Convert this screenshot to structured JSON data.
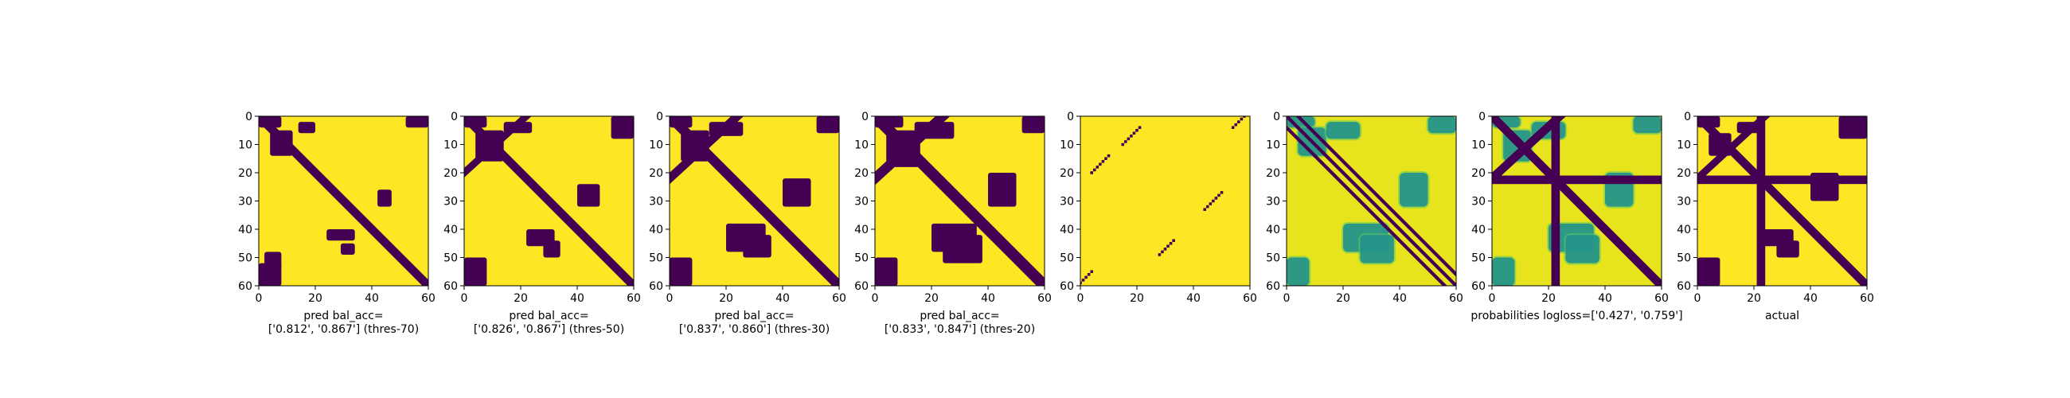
{
  "chart_data": [
    {
      "type": "heatmap",
      "panel": 1,
      "caption": [
        "pred bal_acc=",
        "['0.812', '0.867'] (thres-70)"
      ],
      "xticks": [
        0,
        20,
        40,
        60
      ],
      "yticks": [
        0,
        10,
        20,
        30,
        40,
        50,
        60
      ],
      "xlim": [
        0,
        60
      ],
      "ylim": [
        60,
        0
      ],
      "colormap": "binary",
      "colors": [
        "#440154",
        "#fde725"
      ],
      "dark_bands": [
        {
          "kind": "diagonal",
          "from": [
            0,
            0
          ],
          "to": [
            60,
            60
          ],
          "width": 3
        }
      ],
      "dark_blobs": [
        [
          0,
          0,
          8,
          4
        ],
        [
          4,
          5,
          12,
          14
        ],
        [
          14,
          2,
          20,
          6
        ],
        [
          52,
          0,
          60,
          4
        ],
        [
          42,
          26,
          47,
          32
        ],
        [
          24,
          40,
          34,
          44
        ],
        [
          2,
          48,
          8,
          54
        ],
        [
          0,
          52,
          8,
          60
        ],
        [
          29,
          45,
          34,
          49
        ]
      ]
    },
    {
      "type": "heatmap",
      "panel": 2,
      "caption": [
        "pred bal_acc=",
        "['0.826', '0.867'] (thres-50)"
      ],
      "xticks": [
        0,
        20,
        40,
        60
      ],
      "yticks": [
        0,
        10,
        20,
        30,
        40,
        50,
        60
      ],
      "xlim": [
        0,
        60
      ],
      "ylim": [
        60,
        0
      ],
      "colormap": "binary",
      "colors": [
        "#440154",
        "#fde725"
      ],
      "dark_bands": [
        {
          "kind": "diagonal",
          "from": [
            0,
            0
          ],
          "to": [
            60,
            60
          ],
          "width": 3
        },
        {
          "kind": "antidiagonal",
          "from": [
            22,
            0
          ],
          "to": [
            0,
            20
          ],
          "width": 2.5
        }
      ],
      "dark_blobs": [
        [
          0,
          0,
          8,
          4
        ],
        [
          4,
          5,
          14,
          16
        ],
        [
          14,
          2,
          24,
          6
        ],
        [
          52,
          0,
          60,
          8
        ],
        [
          40,
          24,
          48,
          32
        ],
        [
          22,
          40,
          32,
          46
        ],
        [
          0,
          50,
          8,
          60
        ],
        [
          28,
          44,
          34,
          50
        ]
      ]
    },
    {
      "type": "heatmap",
      "panel": 3,
      "caption": [
        "pred bal_acc=",
        "['0.837', '0.860'] (thres-30)"
      ],
      "xticks": [
        0,
        20,
        40,
        60
      ],
      "yticks": [
        0,
        10,
        20,
        30,
        40,
        50,
        60
      ],
      "xlim": [
        0,
        60
      ],
      "ylim": [
        60,
        0
      ],
      "colormap": "binary",
      "colors": [
        "#440154",
        "#fde725"
      ],
      "dark_bands": [
        {
          "kind": "diagonal",
          "from": [
            0,
            0
          ],
          "to": [
            60,
            60
          ],
          "width": 3.5
        },
        {
          "kind": "antidiagonal",
          "from": [
            24,
            0
          ],
          "to": [
            0,
            22
          ],
          "width": 3
        }
      ],
      "dark_blobs": [
        [
          0,
          0,
          8,
          4
        ],
        [
          4,
          5,
          14,
          16
        ],
        [
          14,
          2,
          26,
          7
        ],
        [
          52,
          0,
          60,
          6
        ],
        [
          40,
          22,
          50,
          32
        ],
        [
          20,
          38,
          34,
          48
        ],
        [
          0,
          50,
          8,
          60
        ],
        [
          26,
          42,
          36,
          50
        ]
      ]
    },
    {
      "type": "heatmap",
      "panel": 4,
      "caption": [
        "pred bal_acc=",
        "['0.833', '0.847'] (thres-20)"
      ],
      "xticks": [
        0,
        20,
        40,
        60
      ],
      "yticks": [
        0,
        10,
        20,
        30,
        40,
        50,
        60
      ],
      "xlim": [
        0,
        60
      ],
      "ylim": [
        60,
        0
      ],
      "colormap": "binary",
      "colors": [
        "#440154",
        "#fde725"
      ],
      "dark_bands": [
        {
          "kind": "diagonal",
          "from": [
            0,
            0
          ],
          "to": [
            60,
            60
          ],
          "width": 4
        },
        {
          "kind": "antidiagonal",
          "from": [
            24,
            0
          ],
          "to": [
            0,
            22
          ],
          "width": 3.5
        }
      ],
      "dark_blobs": [
        [
          0,
          0,
          10,
          4
        ],
        [
          4,
          5,
          16,
          18
        ],
        [
          14,
          2,
          28,
          8
        ],
        [
          52,
          0,
          60,
          6
        ],
        [
          40,
          20,
          50,
          32
        ],
        [
          20,
          38,
          36,
          48
        ],
        [
          0,
          50,
          8,
          60
        ],
        [
          24,
          42,
          38,
          52
        ]
      ]
    },
    {
      "type": "heatmap",
      "panel": 5,
      "caption": [
        "",
        ""
      ],
      "xticks": [
        0,
        20,
        40,
        60
      ],
      "yticks": [
        0,
        10,
        20,
        30,
        40,
        50,
        60
      ],
      "xlim": [
        0,
        60
      ],
      "ylim": [
        60,
        0
      ],
      "colormap": "binary",
      "colors": [
        "#440154",
        "#fde725"
      ],
      "dot_segments": [
        [
          [
            15,
            10
          ],
          [
            21,
            4
          ]
        ],
        [
          [
            4,
            20
          ],
          [
            10,
            14
          ]
        ],
        [
          [
            54,
            4
          ],
          [
            58,
            0
          ]
        ],
        [
          [
            44,
            33
          ],
          [
            50,
            27
          ]
        ],
        [
          [
            28,
            49
          ],
          [
            33,
            44
          ]
        ],
        [
          [
            0,
            59
          ],
          [
            4,
            55
          ]
        ]
      ]
    },
    {
      "type": "heatmap",
      "panel": 6,
      "caption": [
        "",
        ""
      ],
      "xticks": [
        0,
        20,
        40,
        60
      ],
      "yticks": [
        0,
        10,
        20,
        30,
        40,
        50,
        60
      ],
      "xlim": [
        0,
        60
      ],
      "ylim": [
        60,
        0
      ],
      "colormap": "viridis",
      "colors": [
        "#440154",
        "#21918c",
        "#5ec962",
        "#d8e219",
        "#fde725"
      ],
      "dark_bands": [
        {
          "kind": "diagonal",
          "from": [
            0,
            0
          ],
          "to": [
            60,
            60
          ],
          "width": 1.2
        },
        {
          "kind": "diagonal",
          "from": [
            4,
            0
          ],
          "to": [
            60,
            56
          ],
          "width": 1.2
        },
        {
          "kind": "diagonal",
          "from": [
            0,
            4
          ],
          "to": [
            56,
            60
          ],
          "width": 1.2
        }
      ],
      "mid_blobs": [
        [
          0,
          0,
          10,
          4
        ],
        [
          4,
          4,
          14,
          14
        ],
        [
          14,
          2,
          26,
          8
        ],
        [
          50,
          0,
          60,
          6
        ],
        [
          40,
          20,
          50,
          32
        ],
        [
          20,
          38,
          36,
          48
        ],
        [
          0,
          50,
          8,
          60
        ],
        [
          26,
          42,
          38,
          52
        ]
      ]
    },
    {
      "type": "heatmap",
      "panel": 7,
      "caption": [
        "probabilities logloss=['0.427', '0.759']",
        ""
      ],
      "xticks": [
        0,
        20,
        40,
        60
      ],
      "yticks": [
        0,
        10,
        20,
        30,
        40,
        50,
        60
      ],
      "xlim": [
        0,
        60
      ],
      "ylim": [
        60,
        0
      ],
      "colormap": "viridis",
      "colors": [
        "#440154",
        "#21918c",
        "#5ec962",
        "#d8e219",
        "#fde725"
      ],
      "dark_bands": [
        {
          "kind": "diagonal",
          "from": [
            0,
            0
          ],
          "to": [
            60,
            60
          ],
          "width": 3
        },
        {
          "kind": "antidiagonal",
          "from": [
            24,
            0
          ],
          "to": [
            0,
            22
          ],
          "width": 3
        }
      ],
      "dark_lines": [
        {
          "orientation": "vertical",
          "at": 22.5,
          "width": 3
        },
        {
          "orientation": "horizontal",
          "at": 22.5,
          "width": 3
        }
      ],
      "mid_blobs": [
        [
          0,
          0,
          10,
          4
        ],
        [
          4,
          5,
          14,
          16
        ],
        [
          14,
          2,
          26,
          8
        ],
        [
          50,
          0,
          60,
          6
        ],
        [
          40,
          20,
          50,
          32
        ],
        [
          20,
          38,
          36,
          48
        ],
        [
          0,
          50,
          8,
          60
        ],
        [
          26,
          42,
          38,
          52
        ]
      ]
    },
    {
      "type": "heatmap",
      "panel": 8,
      "caption": [
        "actual",
        ""
      ],
      "xticks": [
        0,
        20,
        40,
        60
      ],
      "yticks": [
        0,
        10,
        20,
        30,
        40,
        50,
        60
      ],
      "xlim": [
        0,
        60
      ],
      "ylim": [
        60,
        0
      ],
      "colormap": "binary",
      "colors": [
        "#440154",
        "#fde725"
      ],
      "dark_bands": [
        {
          "kind": "diagonal",
          "from": [
            0,
            0
          ],
          "to": [
            60,
            60
          ],
          "width": 3
        },
        {
          "kind": "antidiagonal",
          "from": [
            24,
            0
          ],
          "to": [
            0,
            22
          ],
          "width": 2.5
        }
      ],
      "dark_lines": [
        {
          "orientation": "vertical",
          "at": 22.5,
          "width": 3
        },
        {
          "orientation": "horizontal",
          "at": 22.5,
          "width": 3
        }
      ],
      "dark_blobs": [
        [
          0,
          0,
          8,
          4
        ],
        [
          4,
          6,
          12,
          14
        ],
        [
          14,
          2,
          22,
          6
        ],
        [
          50,
          0,
          60,
          8
        ],
        [
          40,
          20,
          50,
          30
        ],
        [
          22,
          40,
          34,
          46
        ],
        [
          0,
          50,
          8,
          60
        ],
        [
          28,
          44,
          36,
          50
        ]
      ]
    }
  ]
}
